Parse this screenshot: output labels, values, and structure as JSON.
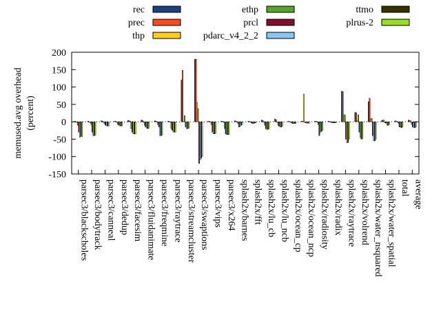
{
  "chart_data": {
    "type": "bar",
    "ylabel": "memused.avg overhead\n(percent)",
    "ylim": [
      -150,
      200
    ],
    "yticks": [
      -150,
      -100,
      -50,
      0,
      50,
      100,
      150,
      200
    ],
    "grid": false,
    "legend_position": "top",
    "categories": [
      "parsec3/blackscholes",
      "parsec3/bodytrack",
      "parsec3/canneal",
      "parsec3/dedup",
      "parsec3/facesim",
      "parsec3/fluidanimate",
      "parsec3/freqmine",
      "parsec3/raytrace",
      "parsec3/streamcluster",
      "parsec3/swaptions",
      "parsec3/vips",
      "parsec3/x264",
      "splash2x/barnes",
      "splash2x/fft",
      "splash2x/lu_cb",
      "splash2x/lu_ncb",
      "splash2x/ocean_cp",
      "splash2x/ocean_ncp",
      "splash2x/radiosity",
      "splash2x/radix",
      "splash2x/raytrace",
      "splash2x/volrend",
      "splash2x/water_nsquared",
      "splash2x/water_spatial",
      "total",
      "average"
    ],
    "series": [
      {
        "name": "rec",
        "color": "#1f3f7f",
        "values": [
          2,
          2,
          3,
          2,
          4,
          5,
          3,
          2,
          120,
          180,
          2,
          2,
          3,
          2,
          5,
          8,
          2,
          2,
          2,
          2,
          88,
          27,
          58,
          4,
          3,
          5
        ]
      },
      {
        "name": "prec",
        "color": "#ff4a1c",
        "values": [
          -1,
          -1,
          2,
          1,
          3,
          4,
          2,
          1,
          148,
          180,
          1,
          1,
          2,
          1,
          4,
          6,
          1,
          1,
          1,
          1,
          87,
          26,
          68,
          5,
          2,
          4
        ]
      },
      {
        "name": "thp",
        "color": "#ffcc22",
        "values": [
          -2,
          -2,
          -1,
          -1,
          2,
          -1,
          -1,
          -1,
          1,
          55,
          -1,
          -1,
          -1,
          -1,
          -1,
          -1,
          -1,
          80,
          -1,
          -1,
          20,
          3,
          8,
          5,
          1,
          3
        ]
      },
      {
        "name": "ethp",
        "color": "#5aa02c",
        "values": [
          -10,
          -8,
          -6,
          -8,
          -20,
          -10,
          -8,
          -20,
          18,
          38,
          -8,
          -20,
          -6,
          -3,
          -10,
          -10,
          -3,
          -2,
          -8,
          -2,
          20,
          20,
          10,
          -3,
          -4,
          -8
        ]
      },
      {
        "name": "prcl",
        "color": "#80102a",
        "values": [
          -30,
          -30,
          -10,
          -10,
          -30,
          -15,
          -15,
          -25,
          -15,
          -120,
          -30,
          -35,
          -15,
          -5,
          -20,
          -13,
          -5,
          -3,
          -40,
          -3,
          -50,
          -30,
          -40,
          -4,
          -15,
          -15
        ]
      },
      {
        "name": "pdarc_v4_2_2",
        "color": "#88c6f0",
        "values": [
          -45,
          -40,
          -12,
          -12,
          -35,
          -18,
          -40,
          -30,
          -20,
          -110,
          -35,
          -37,
          -13,
          -5,
          -22,
          -15,
          -5,
          -4,
          -30,
          -3,
          -60,
          -45,
          -55,
          -10,
          -15,
          -17
        ]
      },
      {
        "name": "ttmo",
        "color": "#333300",
        "values": [
          -42,
          -40,
          -12,
          -12,
          -35,
          -20,
          -40,
          -30,
          -20,
          -105,
          -35,
          -37,
          -10,
          -4,
          -22,
          -15,
          -5,
          -4,
          -28,
          -3,
          -60,
          -50,
          -55,
          -10,
          -17,
          -17
        ]
      },
      {
        "name": "plrus-2",
        "color": "#99dd22",
        "values": [
          -43,
          -38,
          -12,
          -12,
          -35,
          -18,
          -38,
          -30,
          -18,
          -100,
          -33,
          -37,
          -8,
          -3,
          -20,
          -13,
          -5,
          -4,
          -25,
          -3,
          -50,
          -48,
          -50,
          -8,
          -15,
          -15
        ]
      }
    ]
  }
}
